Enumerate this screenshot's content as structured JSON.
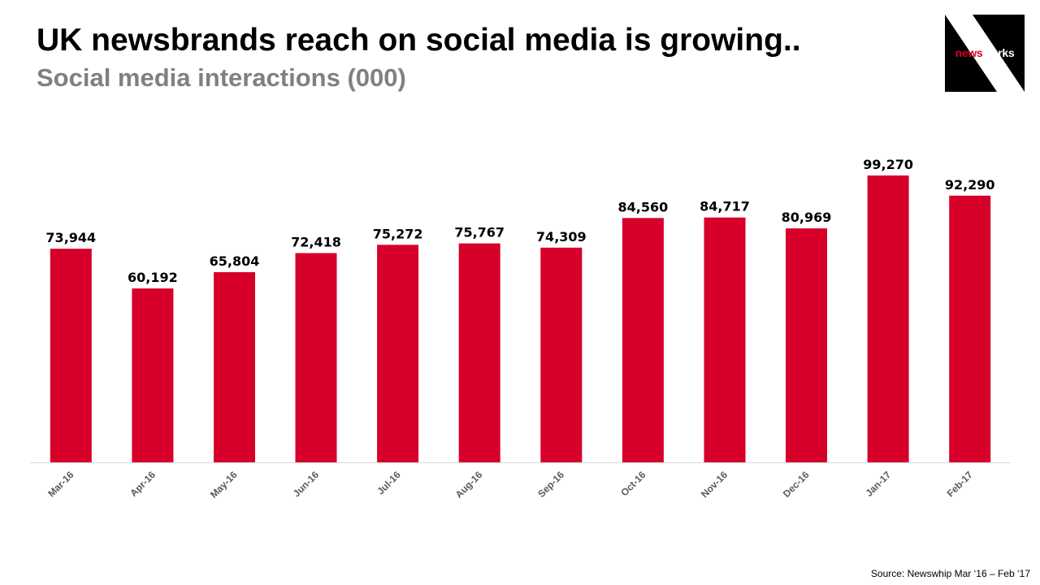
{
  "header": {
    "title": "UK newsbrands reach on social media is growing..",
    "subtitle": "Social media interactions (000)"
  },
  "logo": {
    "name_part1": "news",
    "name_part2": "works",
    "colors": {
      "background": "#000000",
      "accent": "#d6002a",
      "text": "#ffffff"
    }
  },
  "footer": {
    "source": "Source: Newswhip  Mar ‘16 – Feb ‘17"
  },
  "colors": {
    "bar": "#d6002a",
    "axis": "#d9d9d9",
    "tick_label": "#595959",
    "data_label": "#000000"
  },
  "chart_data": {
    "type": "bar",
    "title": "Social media interactions (000)",
    "xlabel": "",
    "ylabel": "",
    "categories": [
      "Mar-16",
      "Apr-16",
      "May-16",
      "Jun-16",
      "Jul-16",
      "Aug-16",
      "Sep-16",
      "Oct-16",
      "Nov-16",
      "Dec-16",
      "Jan-17",
      "Feb-17"
    ],
    "values": [
      73944,
      60192,
      65804,
      72418,
      75272,
      75767,
      74309,
      84560,
      84717,
      80969,
      99270,
      92290
    ],
    "value_labels": [
      "73,944",
      "60,192",
      "65,804",
      "72,418",
      "75,272",
      "75,767",
      "74,309",
      "84,560",
      "84,717",
      "80,969",
      "99,270",
      "92,290"
    ],
    "ylim": [
      0,
      100000
    ],
    "grid": false,
    "legend": "none",
    "data_labels": true
  }
}
